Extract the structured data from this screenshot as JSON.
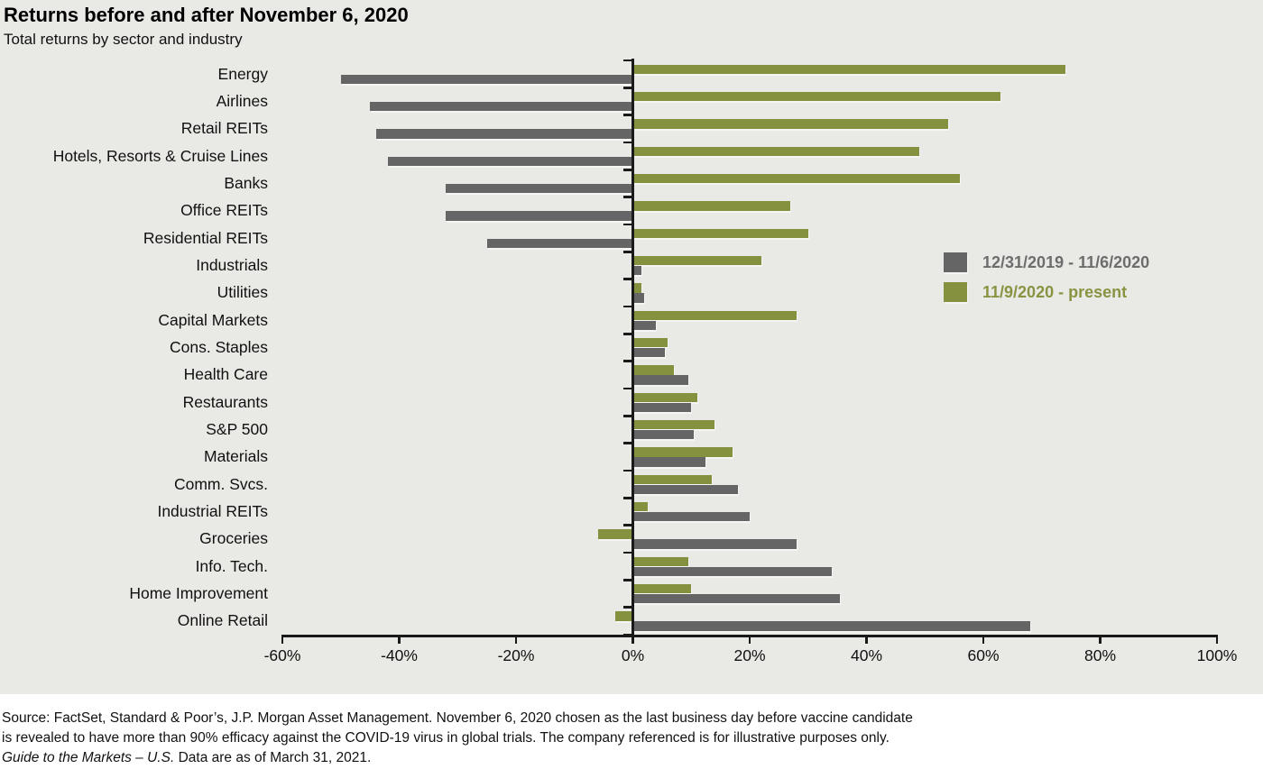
{
  "header": {
    "title": "Returns before and after November 6, 2020",
    "subtitle": "Total returns by sector and industry"
  },
  "legend": {
    "items": [
      {
        "label": "12/31/2019 - 11/6/2020",
        "swatch_color": "#656565",
        "text_color": "#6d6d6d"
      },
      {
        "label": "11/9/2020 - present",
        "swatch_color": "#85913e",
        "text_color": "#8a9342"
      }
    ]
  },
  "chart_data": {
    "type": "bar",
    "orientation": "horizontal",
    "title": "Returns before and after November 6, 2020",
    "subtitle": "Total returns by sector and industry",
    "xlim": [
      -60,
      100
    ],
    "x_ticks": [
      -60,
      -40,
      -20,
      0,
      20,
      40,
      60,
      80,
      100
    ],
    "x_tick_labels": [
      "-60%",
      "-40%",
      "-20%",
      "0%",
      "20%",
      "40%",
      "60%",
      "80%",
      "100%"
    ],
    "grid": false,
    "legend_position": "right-upper-middle",
    "categories": [
      "Energy",
      "Airlines",
      "Retail REITs",
      "Hotels, Resorts & Cruise Lines",
      "Banks",
      "Office REITs",
      "Residential REITs",
      "Industrials",
      "Utilities",
      "Capital Markets",
      "Cons. Staples",
      "Health Care",
      "Restaurants",
      "S&P 500",
      "Materials",
      "Comm. Svcs.",
      "Industrial REITs",
      "Groceries",
      "Info. Tech.",
      "Home Improvement",
      "Online Retail"
    ],
    "series": [
      {
        "name": "12/31/2019 - 11/6/2020",
        "color": "#656565",
        "values": [
          -50,
          -45,
          -44,
          -42,
          -32,
          -32,
          -25,
          1.5,
          2,
          4,
          5.5,
          9.5,
          10,
          10.5,
          12.5,
          18,
          20,
          28,
          34,
          35.5,
          68
        ]
      },
      {
        "name": "11/9/2020 - present",
        "color": "#85913e",
        "values": [
          74,
          63,
          54,
          49,
          56,
          27,
          30,
          22,
          1.5,
          28,
          6,
          7,
          11,
          14,
          17,
          13.5,
          2.5,
          -6,
          9.5,
          10,
          -3
        ]
      }
    ]
  },
  "footer": {
    "line1": "Source: FactSet, Standard & Poor’s, J.P. Morgan Asset Management. November 6, 2020 chosen as the last business day before vaccine candidate",
    "line2": "is revealed to have more than 90% efficacy against the COVID-19 virus in global trials. The company referenced is for illustrative purposes only.",
    "line3_italic": "Guide to the Markets – U.S.",
    "line3_regular": " Data are as of March 31, 2021."
  }
}
